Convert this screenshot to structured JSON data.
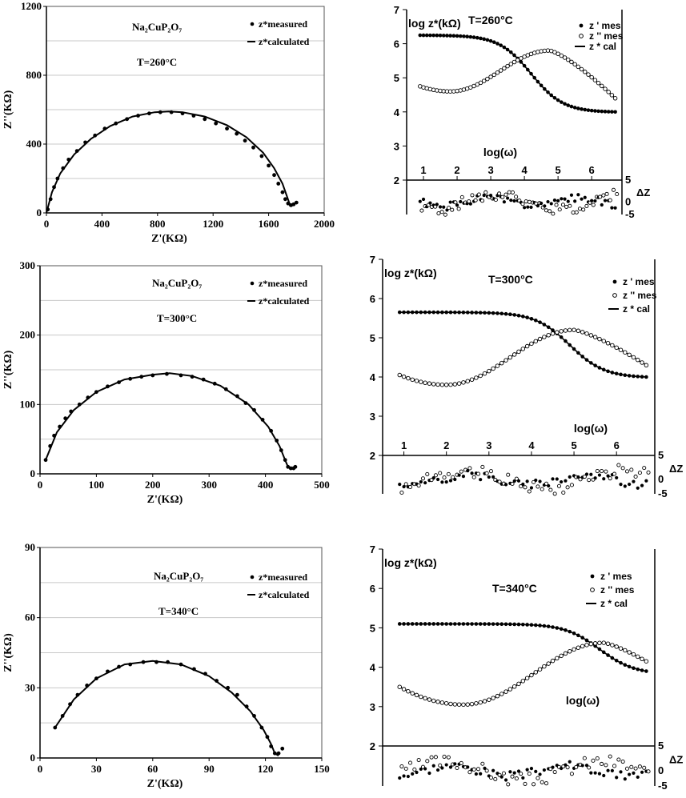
{
  "chart_data": [
    {
      "id": "nyquist-260",
      "type": "scatter",
      "xlabel": "Z'(KΩ)",
      "ylabel": "Z''(KΩ)",
      "xlim": [
        0,
        2000
      ],
      "ylim": [
        0,
        1200
      ],
      "xticks": [
        "0",
        "400",
        "800",
        "1200",
        "1600",
        "2000"
      ],
      "yticks": [
        "0",
        "400",
        "800",
        "1200"
      ],
      "grid": true,
      "annotations": {
        "compound": "Na₂CuP₂O₇",
        "temperature": "T=260°C"
      },
      "legend": {
        "measured": "z*measured",
        "calculated": "z*calculated",
        "placement": "top-right"
      },
      "series": [
        {
          "name": "z*measured",
          "style": "dots",
          "points": [
            [
              10,
              20
            ],
            [
              30,
              80
            ],
            [
              55,
              150
            ],
            [
              80,
              200
            ],
            [
              120,
              260
            ],
            [
              160,
              310
            ],
            [
              220,
              360
            ],
            [
              280,
              410
            ],
            [
              350,
              450
            ],
            [
              420,
              490
            ],
            [
              500,
              520
            ],
            [
              580,
              545
            ],
            [
              660,
              565
            ],
            [
              740,
              578
            ],
            [
              820,
              585
            ],
            [
              900,
              585
            ],
            [
              980,
              578
            ],
            [
              1060,
              565
            ],
            [
              1140,
              545
            ],
            [
              1220,
              520
            ],
            [
              1300,
              490
            ],
            [
              1370,
              460
            ],
            [
              1430,
              420
            ],
            [
              1490,
              380
            ],
            [
              1550,
              330
            ],
            [
              1600,
              275
            ],
            [
              1640,
              220
            ],
            [
              1670,
              170
            ],
            [
              1700,
              120
            ],
            [
              1720,
              80
            ],
            [
              1740,
              55
            ],
            [
              1760,
              45
            ],
            [
              1780,
              50
            ],
            [
              1800,
              60
            ]
          ]
        },
        {
          "name": "z*calculated",
          "style": "line",
          "points": [
            [
              0,
              0
            ],
            [
              40,
              120
            ],
            [
              100,
              230
            ],
            [
              200,
              340
            ],
            [
              320,
              430
            ],
            [
              460,
              505
            ],
            [
              620,
              560
            ],
            [
              780,
              585
            ],
            [
              880,
              590
            ],
            [
              980,
              585
            ],
            [
              1140,
              560
            ],
            [
              1300,
              510
            ],
            [
              1440,
              440
            ],
            [
              1560,
              350
            ],
            [
              1640,
              260
            ],
            [
              1700,
              170
            ],
            [
              1730,
              100
            ],
            [
              1750,
              55
            ],
            [
              1765,
              40
            ],
            [
              1775,
              45
            ]
          ]
        }
      ]
    },
    {
      "id": "bode-260",
      "type": "scatter",
      "ylabel": "log z*(kΩ)",
      "xlabel": "log(ω)",
      "residual_label": "ΔZ",
      "ylim": [
        2,
        7
      ],
      "xlim": [
        0.5,
        6.9
      ],
      "yticks": [
        "2",
        "3",
        "4",
        "5",
        "6",
        "7"
      ],
      "xticks": [
        "1",
        "2",
        "3",
        "4",
        "5",
        "6"
      ],
      "residual_ticks": [
        "5",
        "0",
        "-5"
      ],
      "annotations": {
        "temperature": "T=260°C"
      },
      "legend": {
        "zr": "z ' mes",
        "zi": "z '' mes",
        "cal": "z * cal",
        "placement": "top-right"
      },
      "zr": {
        "plateau": 6.25,
        "knee": 4.2,
        "fc": 1.05,
        "hf_end": 4.0
      },
      "zi": {
        "start": 4.75,
        "min_x": 1.8,
        "min_y": 4.6,
        "peak_x": 4.75,
        "peak_y": 5.8,
        "end": 4.4
      },
      "residuals_seed": 1
    },
    {
      "id": "nyquist-300",
      "type": "scatter",
      "xlabel": "Z'(KΩ)",
      "ylabel": "Z''(KΩ)",
      "xlim": [
        0,
        500
      ],
      "ylim": [
        0,
        300
      ],
      "xticks": [
        "0",
        "100",
        "200",
        "300",
        "400",
        "500"
      ],
      "yticks": [
        "0",
        "100",
        "200",
        "300"
      ],
      "grid": true,
      "annotations": {
        "compound": "Na₂CuP₂O₇",
        "temperature": "T=300°C"
      },
      "legend": {
        "measured": "z*measured",
        "calculated": "z*calculated",
        "placement": "top-right"
      },
      "series": [
        {
          "name": "z*measured",
          "style": "dots",
          "points": [
            [
              10,
              20
            ],
            [
              18,
              40
            ],
            [
              25,
              55
            ],
            [
              35,
              68
            ],
            [
              45,
              80
            ],
            [
              55,
              90
            ],
            [
              70,
              100
            ],
            [
              85,
              110
            ],
            [
              100,
              118
            ],
            [
              120,
              126
            ],
            [
              140,
              132
            ],
            [
              160,
              137
            ],
            [
              180,
              140
            ],
            [
              200,
              142
            ],
            [
              225,
              144
            ],
            [
              250,
              142
            ],
            [
              270,
              140
            ],
            [
              290,
              136
            ],
            [
              310,
              130
            ],
            [
              330,
              122
            ],
            [
              350,
              112
            ],
            [
              365,
              102
            ],
            [
              380,
              92
            ],
            [
              395,
              78
            ],
            [
              410,
              62
            ],
            [
              420,
              48
            ],
            [
              428,
              34
            ],
            [
              435,
              20
            ],
            [
              440,
              10
            ],
            [
              445,
              8
            ],
            [
              450,
              8
            ],
            [
              453,
              10
            ]
          ]
        },
        {
          "name": "z*calculated",
          "style": "line",
          "points": [
            [
              10,
              20
            ],
            [
              30,
              60
            ],
            [
              60,
              92
            ],
            [
              100,
              118
            ],
            [
              150,
              136
            ],
            [
              200,
              143
            ],
            [
              230,
              145
            ],
            [
              270,
              141
            ],
            [
              320,
              127
            ],
            [
              370,
              100
            ],
            [
              405,
              68
            ],
            [
              425,
              40
            ],
            [
              435,
              20
            ],
            [
              440,
              10
            ],
            [
              446,
              8
            ]
          ]
        }
      ]
    },
    {
      "id": "bode-300",
      "type": "scatter",
      "ylabel": "log z*(kΩ)",
      "xlabel": "log(ω)",
      "residual_label": "ΔZ",
      "ylim": [
        2,
        7
      ],
      "xlim": [
        0.5,
        6.9
      ],
      "yticks": [
        "2",
        "3",
        "4",
        "5",
        "6",
        "7"
      ],
      "xticks": [
        "1",
        "2",
        "3",
        "4",
        "5",
        "6"
      ],
      "residual_ticks": [
        "5",
        "0",
        "-5"
      ],
      "annotations": {
        "temperature": "T=300°C"
      },
      "legend": {
        "zr": "z ' mes",
        "zi": "z '' mes",
        "cal": "z * cal",
        "placement": "top-right"
      },
      "zr": {
        "plateau": 5.65,
        "knee": 4.9,
        "fc": 0.9,
        "hf_end": 4.0
      },
      "zi": {
        "start": 4.05,
        "min_x": 2.0,
        "min_y": 3.8,
        "peak_x": 5.0,
        "peak_y": 5.2,
        "end": 4.3
      },
      "residuals_seed": 2
    },
    {
      "id": "nyquist-340",
      "type": "scatter",
      "xlabel": "Z'(KΩ)",
      "ylabel": "Z''(KΩ)",
      "xlim": [
        0,
        150
      ],
      "ylim": [
        0,
        90
      ],
      "xticks": [
        "0",
        "30",
        "60",
        "90",
        "120",
        "150"
      ],
      "yticks": [
        "0",
        "30",
        "60",
        "90"
      ],
      "grid": true,
      "annotations": {
        "compound": "Na₂CuP₂O₇",
        "temperature": "T=340°C"
      },
      "legend": {
        "measured": "z*measured",
        "calculated": "z*calculated",
        "placement": "top-right"
      },
      "series": [
        {
          "name": "z*measured",
          "style": "dots",
          "points": [
            [
              8,
              13
            ],
            [
              12,
              18
            ],
            [
              16,
              23
            ],
            [
              20,
              27
            ],
            [
              25,
              31
            ],
            [
              30,
              34
            ],
            [
              36,
              37
            ],
            [
              42,
              39
            ],
            [
              48,
              40
            ],
            [
              55,
              41
            ],
            [
              62,
              41
            ],
            [
              68,
              41
            ],
            [
              75,
              40
            ],
            [
              82,
              38
            ],
            [
              88,
              36
            ],
            [
              94,
              33
            ],
            [
              100,
              30
            ],
            [
              105,
              27
            ],
            [
              110,
              22
            ],
            [
              114,
              18
            ],
            [
              118,
              13
            ],
            [
              121,
              9
            ],
            [
              123,
              5
            ],
            [
              125,
              2
            ],
            [
              127,
              2
            ],
            [
              129,
              4
            ]
          ]
        },
        {
          "name": "z*calculated",
          "style": "line",
          "points": [
            [
              8,
              13
            ],
            [
              18,
              25
            ],
            [
              30,
              34
            ],
            [
              45,
              40
            ],
            [
              60,
              41.5
            ],
            [
              75,
              40
            ],
            [
              90,
              35
            ],
            [
              102,
              28
            ],
            [
              112,
              20
            ],
            [
              119,
              12
            ],
            [
              123,
              6
            ],
            [
              125,
              2
            ],
            [
              127,
              1
            ]
          ]
        }
      ]
    },
    {
      "id": "bode-340",
      "type": "scatter",
      "ylabel": "log z*(kΩ)",
      "xlabel": "log(ω)",
      "residual_label": "ΔZ",
      "ylim": [
        2,
        7
      ],
      "xlim": [
        0.5,
        6.9
      ],
      "yticks": [
        "2",
        "3",
        "4",
        "5",
        "6",
        "7"
      ],
      "xticks": [],
      "residual_ticks": [
        "5",
        "0",
        "-5"
      ],
      "annotations": {
        "temperature": "T=340°C"
      },
      "legend": {
        "zr": "z ' mes",
        "zi": "z '' mes",
        "cal": "z * cal",
        "placement": "top-right"
      },
      "zr": {
        "plateau": 5.1,
        "knee": 5.6,
        "fc": 0.9,
        "hf_end": 3.9
      },
      "zi": {
        "start": 3.5,
        "min_x": 2.4,
        "min_y": 3.05,
        "peak_x": 5.7,
        "peak_y": 4.62,
        "end": 4.15
      },
      "residuals_seed": 3
    }
  ]
}
